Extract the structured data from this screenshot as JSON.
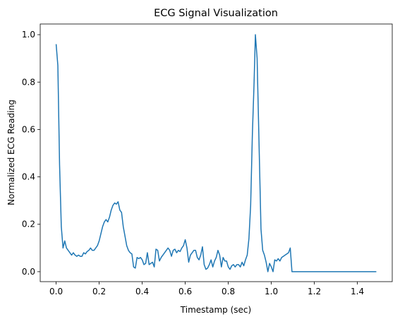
{
  "chart_data": {
    "type": "line",
    "title": "ECG Signal Visualization",
    "xlabel": "Timestamp (sec)",
    "ylabel": "Normalized ECG Reading",
    "x": [
      0,
      0.008,
      0.016,
      0.024,
      0.032,
      0.04,
      0.048,
      0.056,
      0.064,
      0.072,
      0.08,
      0.088,
      0.096,
      0.104,
      0.112,
      0.12,
      0.128,
      0.136,
      0.144,
      0.152,
      0.16,
      0.168,
      0.176,
      0.184,
      0.192,
      0.2,
      0.208,
      0.216,
      0.224,
      0.232,
      0.24,
      0.248,
      0.256,
      0.264,
      0.272,
      0.28,
      0.288,
      0.296,
      0.304,
      0.312,
      0.32,
      0.328,
      0.336,
      0.344,
      0.352,
      0.36,
      0.368,
      0.376,
      0.384,
      0.392,
      0.4,
      0.408,
      0.416,
      0.424,
      0.432,
      0.44,
      0.448,
      0.456,
      0.464,
      0.472,
      0.48,
      0.488,
      0.496,
      0.504,
      0.512,
      0.52,
      0.528,
      0.536,
      0.544,
      0.552,
      0.56,
      0.568,
      0.576,
      0.584,
      0.592,
      0.6,
      0.608,
      0.616,
      0.624,
      0.632,
      0.64,
      0.648,
      0.656,
      0.664,
      0.672,
      0.68,
      0.688,
      0.696,
      0.704,
      0.712,
      0.72,
      0.728,
      0.736,
      0.744,
      0.752,
      0.76,
      0.768,
      0.776,
      0.784,
      0.792,
      0.8,
      0.808,
      0.816,
      0.824,
      0.832,
      0.84,
      0.848,
      0.856,
      0.864,
      0.872,
      0.88,
      0.888,
      0.896,
      0.904,
      0.912,
      0.92,
      0.926,
      0.934,
      0.944,
      0.952,
      0.96,
      0.968,
      0.976,
      0.984,
      0.992,
      1.0,
      1.008,
      1.016,
      1.024,
      1.032,
      1.04,
      1.048,
      1.056,
      1.064,
      1.072,
      1.08,
      1.088,
      1.096,
      1.488
    ],
    "series": [
      {
        "name": "ECG",
        "color": "#1f77b4",
        "values": [
          0.96,
          0.87,
          0.45,
          0.19,
          0.1,
          0.13,
          0.1,
          0.09,
          0.08,
          0.07,
          0.08,
          0.07,
          0.065,
          0.07,
          0.065,
          0.065,
          0.08,
          0.075,
          0.085,
          0.09,
          0.1,
          0.09,
          0.09,
          0.1,
          0.11,
          0.13,
          0.16,
          0.19,
          0.21,
          0.22,
          0.21,
          0.23,
          0.26,
          0.28,
          0.29,
          0.285,
          0.295,
          0.26,
          0.25,
          0.19,
          0.15,
          0.11,
          0.09,
          0.08,
          0.075,
          0.02,
          0.015,
          0.06,
          0.055,
          0.06,
          0.05,
          0.03,
          0.035,
          0.08,
          0.03,
          0.035,
          0.04,
          0.02,
          0.095,
          0.09,
          0.045,
          0.06,
          0.07,
          0.08,
          0.09,
          0.1,
          0.09,
          0.065,
          0.09,
          0.095,
          0.08,
          0.09,
          0.085,
          0.1,
          0.11,
          0.135,
          0.1,
          0.04,
          0.07,
          0.08,
          0.09,
          0.09,
          0.06,
          0.05,
          0.07,
          0.105,
          0.03,
          0.01,
          0.015,
          0.03,
          0.05,
          0.02,
          0.045,
          0.06,
          0.09,
          0.07,
          0.02,
          0.06,
          0.045,
          0.045,
          0.02,
          0.01,
          0.025,
          0.03,
          0.02,
          0.03,
          0.03,
          0.02,
          0.04,
          0.025,
          0.05,
          0.07,
          0.14,
          0.28,
          0.58,
          0.8,
          1.0,
          0.9,
          0.5,
          0.18,
          0.09,
          0.07,
          0.04,
          0,
          0.035,
          0.02,
          0,
          0.05,
          0.045,
          0.055,
          0.045,
          0.06,
          0.065,
          0.07,
          0.075,
          0.08,
          0.1,
          0,
          0
        ]
      }
    ],
    "xlim": [
      -0.074,
      1.562
    ],
    "ylim": [
      -0.042,
      1.045
    ],
    "xticks": [
      {
        "value": 0,
        "label": "0.0"
      },
      0.2,
      0.4,
      0.6,
      0.8,
      {
        "value": 1,
        "label": "1.0"
      },
      1.2,
      1.4
    ],
    "yticks": [
      {
        "value": 0,
        "label": "0.0"
      },
      0.2,
      0.4,
      0.6,
      0.8,
      {
        "value": 1,
        "label": "1.0"
      }
    ]
  }
}
